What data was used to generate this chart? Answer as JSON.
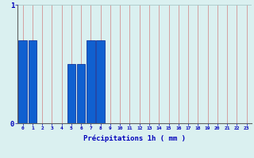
{
  "values": [
    0.7,
    0.7,
    0,
    0,
    0,
    0.5,
    0.5,
    0.7,
    0.7,
    0,
    0,
    0,
    0,
    0,
    0,
    0,
    0,
    0,
    0,
    0,
    0,
    0,
    0,
    0
  ],
  "xlabel": "Précipitations 1h ( mm )",
  "ylim": [
    0,
    1
  ],
  "xlim": [
    -0.5,
    23.5
  ],
  "yticks": [
    0,
    1
  ],
  "xticks": [
    0,
    1,
    2,
    3,
    4,
    5,
    6,
    7,
    8,
    9,
    10,
    11,
    12,
    13,
    14,
    15,
    16,
    17,
    18,
    19,
    20,
    21,
    22,
    23
  ],
  "bar_color": "#1060d0",
  "bar_edge_color": "#002090",
  "background_color": "#daf0f0",
  "grid_color_v": "#d08080",
  "grid_color_h": "#a8c8c8",
  "xlabel_color": "#0000bb",
  "tick_color": "#0000bb",
  "bar_width": 0.85
}
